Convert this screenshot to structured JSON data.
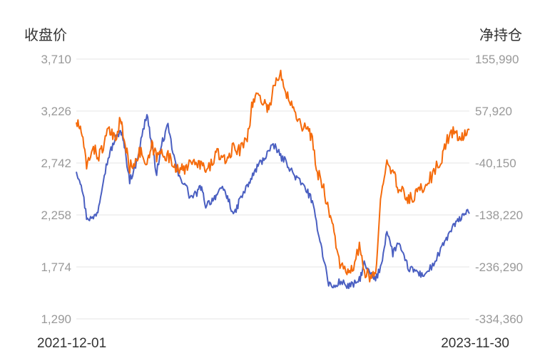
{
  "chart_data": {
    "type": "line",
    "left_axis_title": "收盘价",
    "right_axis_title": "净持仓",
    "left_ticks": [
      "3,710",
      "3,226",
      "2,742",
      "2,258",
      "1,774",
      "1,290"
    ],
    "right_ticks": [
      "155,990",
      "57,920",
      "-40,150",
      "-138,220",
      "-236,290",
      "-334,360"
    ],
    "ylim_left": [
      1290,
      3710
    ],
    "ylim_right": [
      -334360,
      155990
    ],
    "x_start_label": "2021-12-01",
    "x_end_label": "2023-11-30",
    "grid": "horizontal",
    "colors": {
      "close": "#4a5fc1",
      "net_position": "#f56b0c"
    },
    "series": [
      {
        "axis": "left",
        "color": "#4a5fc1",
        "points": [
          [
            "2021-12-01",
            2660
          ],
          [
            "2021-12-10",
            2560
          ],
          [
            "2021-12-20",
            2240
          ],
          [
            "2021-12-31",
            2220
          ],
          [
            "2022-01-10",
            2300
          ],
          [
            "2022-01-20",
            2600
          ],
          [
            "2022-01-31",
            2820
          ],
          [
            "2022-02-10",
            2950
          ],
          [
            "2022-02-21",
            3050
          ],
          [
            "2022-02-28",
            2900
          ],
          [
            "2022-03-10",
            2580
          ],
          [
            "2022-03-21",
            2720
          ],
          [
            "2022-03-31",
            2950
          ],
          [
            "2022-04-11",
            3210
          ],
          [
            "2022-04-20",
            2900
          ],
          [
            "2022-04-29",
            2650
          ],
          [
            "2022-05-10",
            2950
          ],
          [
            "2022-05-20",
            3080
          ],
          [
            "2022-05-31",
            2800
          ],
          [
            "2022-06-10",
            2600
          ],
          [
            "2022-06-20",
            2560
          ],
          [
            "2022-06-30",
            2420
          ],
          [
            "2022-07-11",
            2450
          ],
          [
            "2022-07-20",
            2520
          ],
          [
            "2022-07-29",
            2350
          ],
          [
            "2022-08-10",
            2400
          ],
          [
            "2022-08-19",
            2450
          ],
          [
            "2022-08-31",
            2500
          ],
          [
            "2022-09-09",
            2400
          ],
          [
            "2022-09-20",
            2250
          ],
          [
            "2022-09-30",
            2400
          ],
          [
            "2022-10-14",
            2520
          ],
          [
            "2022-10-24",
            2620
          ],
          [
            "2022-11-03",
            2720
          ],
          [
            "2022-11-14",
            2780
          ],
          [
            "2022-11-23",
            2860
          ],
          [
            "2022-12-05",
            2900
          ],
          [
            "2022-12-15",
            2800
          ],
          [
            "2022-12-26",
            2750
          ],
          [
            "2023-01-06",
            2650
          ],
          [
            "2023-01-17",
            2580
          ],
          [
            "2023-01-31",
            2500
          ],
          [
            "2023-02-10",
            2400
          ],
          [
            "2023-02-21",
            2150
          ],
          [
            "2023-03-03",
            1900
          ],
          [
            "2023-03-14",
            1620
          ],
          [
            "2023-03-24",
            1580
          ],
          [
            "2023-04-04",
            1640
          ],
          [
            "2023-04-17",
            1600
          ],
          [
            "2023-04-27",
            1600
          ],
          [
            "2023-05-10",
            1650
          ],
          [
            "2023-05-19",
            1800
          ],
          [
            "2023-05-31",
            1700
          ],
          [
            "2023-06-09",
            1650
          ],
          [
            "2023-06-20",
            1800
          ],
          [
            "2023-06-30",
            2120
          ],
          [
            "2023-07-11",
            1900
          ],
          [
            "2023-07-21",
            2000
          ],
          [
            "2023-08-01",
            1850
          ],
          [
            "2023-08-11",
            1750
          ],
          [
            "2023-08-22",
            1740
          ],
          [
            "2023-09-01",
            1700
          ],
          [
            "2023-09-12",
            1720
          ],
          [
            "2023-09-25",
            1800
          ],
          [
            "2023-10-10",
            1950
          ],
          [
            "2023-10-20",
            2050
          ],
          [
            "2023-10-31",
            2150
          ],
          [
            "2023-11-10",
            2200
          ],
          [
            "2023-11-20",
            2280
          ],
          [
            "2023-11-30",
            2270
          ]
        ]
      },
      {
        "axis": "left",
        "color": "#f56b0c",
        "points": [
          [
            "2021-12-01",
            3120
          ],
          [
            "2021-12-10",
            3050
          ],
          [
            "2021-12-20",
            2700
          ],
          [
            "2021-12-31",
            2900
          ],
          [
            "2022-01-10",
            2800
          ],
          [
            "2022-01-20",
            2900
          ],
          [
            "2022-01-31",
            3050
          ],
          [
            "2022-02-10",
            2950
          ],
          [
            "2022-02-21",
            3150
          ],
          [
            "2022-02-28",
            2950
          ],
          [
            "2022-03-10",
            2700
          ],
          [
            "2022-03-21",
            2780
          ],
          [
            "2022-03-31",
            2850
          ],
          [
            "2022-04-11",
            2700
          ],
          [
            "2022-04-20",
            2900
          ],
          [
            "2022-04-29",
            2800
          ],
          [
            "2022-05-10",
            2850
          ],
          [
            "2022-05-20",
            2800
          ],
          [
            "2022-05-31",
            2720
          ],
          [
            "2022-06-10",
            2700
          ],
          [
            "2022-06-20",
            2650
          ],
          [
            "2022-06-30",
            2800
          ],
          [
            "2022-07-11",
            2700
          ],
          [
            "2022-07-20",
            2750
          ],
          [
            "2022-07-29",
            2650
          ],
          [
            "2022-08-10",
            2750
          ],
          [
            "2022-08-19",
            2850
          ],
          [
            "2022-08-31",
            2750
          ],
          [
            "2022-09-09",
            2800
          ],
          [
            "2022-09-20",
            2900
          ],
          [
            "2022-09-30",
            2850
          ],
          [
            "2022-10-14",
            3000
          ],
          [
            "2022-10-24",
            3300
          ],
          [
            "2022-11-03",
            3400
          ],
          [
            "2022-11-14",
            3300
          ],
          [
            "2022-11-23",
            3250
          ],
          [
            "2022-12-05",
            3500
          ],
          [
            "2022-12-15",
            3550
          ],
          [
            "2022-12-26",
            3400
          ],
          [
            "2023-01-06",
            3300
          ],
          [
            "2023-01-17",
            3150
          ],
          [
            "2023-01-31",
            3050
          ],
          [
            "2023-02-10",
            3000
          ],
          [
            "2023-02-21",
            2650
          ],
          [
            "2023-03-03",
            2550
          ],
          [
            "2023-03-14",
            2300
          ],
          [
            "2023-03-24",
            2100
          ],
          [
            "2023-04-04",
            1800
          ],
          [
            "2023-04-17",
            1700
          ],
          [
            "2023-04-27",
            1750
          ],
          [
            "2023-05-10",
            1950
          ],
          [
            "2023-05-19",
            1750
          ],
          [
            "2023-05-31",
            1650
          ],
          [
            "2023-06-09",
            1700
          ],
          [
            "2023-06-20",
            2500
          ],
          [
            "2023-06-30",
            2800
          ],
          [
            "2023-07-11",
            2650
          ],
          [
            "2023-07-21",
            2500
          ],
          [
            "2023-08-01",
            2450
          ],
          [
            "2023-08-11",
            2400
          ],
          [
            "2023-08-22",
            2450
          ],
          [
            "2023-09-01",
            2500
          ],
          [
            "2023-09-12",
            2550
          ],
          [
            "2023-09-25",
            2650
          ],
          [
            "2023-10-10",
            2800
          ],
          [
            "2023-10-20",
            2950
          ],
          [
            "2023-10-31",
            3050
          ],
          [
            "2023-11-10",
            2950
          ],
          [
            "2023-11-20",
            3000
          ],
          [
            "2023-11-30",
            3050
          ]
        ]
      }
    ]
  }
}
